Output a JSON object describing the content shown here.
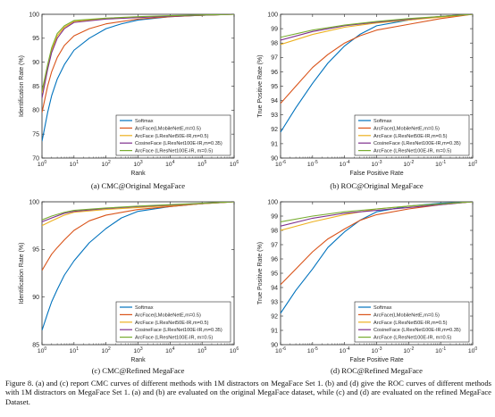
{
  "series_colors": [
    "#0072BD",
    "#D95319",
    "#EDB120",
    "#7E2F8E",
    "#77AC30"
  ],
  "caption": "Figure 8. (a) and (c) report CMC curves of different methods with 1M distractors on MegaFace Set 1. (b) and (d) give the ROC curves of different methods with 1M distractors on MegaFace Set 1. (a) and (b) are evaluated on the original MegaFace dataset, while (c) and (d) are evaluated on the refined MegaFace Dataset.",
  "chart_data": [
    {
      "type": "line",
      "panel_title": "(a)  CMC@Original MegaFace",
      "xlabel": "Rank",
      "ylabel": "Identification Rate (%)",
      "xscale": "log",
      "xlim": [
        1,
        1000000
      ],
      "ylim": [
        70,
        100
      ],
      "x_ticks": [
        1,
        10,
        100,
        1000,
        10000,
        100000,
        1000000
      ],
      "x_tick_labels": [
        [
          "10",
          "0"
        ],
        [
          "10",
          "1"
        ],
        [
          "10",
          "2"
        ],
        [
          "10",
          "3"
        ],
        [
          "10",
          "4"
        ],
        [
          "10",
          "5"
        ],
        [
          "10",
          "6"
        ]
      ],
      "y_ticks": [
        70,
        75,
        80,
        85,
        90,
        95,
        100
      ],
      "grid": false,
      "legend_position": "bottom-right",
      "series": [
        {
          "name": "Softmax",
          "x": [
            1,
            1.5,
            2,
            3,
            5,
            10,
            30,
            100,
            300,
            1000,
            10000,
            100000,
            1000000
          ],
          "y": [
            73.5,
            79.5,
            83,
            86.5,
            89.5,
            92.5,
            95,
            97,
            98,
            98.8,
            99.5,
            99.8,
            100
          ]
        },
        {
          "name": "ArcFace(LMobileNetE,m=0.5)",
          "x": [
            1,
            1.5,
            2,
            3,
            5,
            10,
            30,
            100,
            1000,
            10000,
            100000,
            1000000
          ],
          "y": [
            79.5,
            85,
            88,
            91,
            93.5,
            95.5,
            97,
            98,
            99,
            99.5,
            99.8,
            100
          ]
        },
        {
          "name": "ArcFace (LResNet50E-IR,m=0.5)",
          "x": [
            1,
            1.5,
            2,
            3,
            5,
            10,
            100,
            1000,
            10000,
            1000000
          ],
          "y": [
            83.5,
            89,
            92.5,
            95.5,
            97.3,
            98.5,
            99.1,
            99.4,
            99.6,
            100
          ]
        },
        {
          "name": "CosineFace (LResNet100E-IR,m=0.35)",
          "x": [
            1,
            1.5,
            2,
            3,
            5,
            10,
            100,
            1000,
            10000,
            1000000
          ],
          "y": [
            82.5,
            88.5,
            92,
            95,
            97,
            98.3,
            99,
            99.3,
            99.6,
            100
          ]
        },
        {
          "name": "ArcFace (LResNet100E-IR, m=0.5)",
          "x": [
            1,
            1.5,
            2,
            3,
            5,
            10,
            100,
            1000,
            10000,
            1000000
          ],
          "y": [
            84,
            89.5,
            93,
            96,
            97.6,
            98.7,
            99.2,
            99.5,
            99.7,
            100
          ]
        }
      ]
    },
    {
      "type": "line",
      "panel_title": "(b)  ROC@Original MegaFace",
      "xlabel": "False Positive Rate",
      "ylabel": "True Positive Rate (%)",
      "xscale": "log",
      "xlim": [
        1e-06,
        1
      ],
      "ylim": [
        90,
        100
      ],
      "x_ticks": [
        1e-06,
        1e-05,
        0.0001,
        0.001,
        0.01,
        0.1,
        1
      ],
      "x_tick_labels": [
        [
          "10",
          "-6"
        ],
        [
          "10",
          "-5"
        ],
        [
          "10",
          "-4"
        ],
        [
          "10",
          "-3"
        ],
        [
          "10",
          "-2"
        ],
        [
          "10",
          "-1"
        ],
        [
          "10",
          "0"
        ]
      ],
      "y_ticks": [
        90,
        91,
        92,
        93,
        94,
        95,
        96,
        97,
        98,
        99,
        100
      ],
      "grid": false,
      "legend_position": "bottom-right",
      "series": [
        {
          "name": "Softmax",
          "x": [
            1e-06,
            3e-06,
            1e-05,
            3e-05,
            0.0001,
            0.0003,
            0.001,
            0.01,
            0.1,
            1
          ],
          "y": [
            91.8,
            93.5,
            95.2,
            96.6,
            97.8,
            98.6,
            99.2,
            99.6,
            99.85,
            100
          ]
        },
        {
          "name": "ArcFace(LMobileNetE,m=0.5)",
          "x": [
            1e-06,
            3e-06,
            1e-05,
            3e-05,
            0.0001,
            0.0003,
            0.001,
            0.01,
            0.1,
            1
          ],
          "y": [
            93.8,
            95,
            96.3,
            97.2,
            98,
            98.5,
            98.9,
            99.3,
            99.7,
            100
          ]
        },
        {
          "name": "ArcFace (LResNet50E-IR,m=0.5)",
          "x": [
            1e-06,
            1e-05,
            0.0001,
            0.001,
            0.01,
            0.1,
            1
          ],
          "y": [
            97.9,
            98.6,
            99.1,
            99.4,
            99.6,
            99.8,
            100
          ]
        },
        {
          "name": "CosineFace (LResNet100E-IR,m=0.35)",
          "x": [
            1e-06,
            1e-05,
            0.0001,
            0.001,
            0.01,
            0.1,
            1
          ],
          "y": [
            98.2,
            98.8,
            99.2,
            99.45,
            99.65,
            99.85,
            100
          ]
        },
        {
          "name": "ArcFace (LResNet100E-IR, m=0.5)",
          "x": [
            1e-06,
            1e-05,
            0.0001,
            0.001,
            0.01,
            0.1,
            1
          ],
          "y": [
            98.4,
            98.9,
            99.25,
            99.5,
            99.7,
            99.85,
            100
          ]
        }
      ]
    },
    {
      "type": "line",
      "panel_title": "(c)  CMC@Refined MegaFace",
      "xlabel": "Rank",
      "ylabel": "Identification Rate (%)",
      "xscale": "log",
      "xlim": [
        1,
        1000000
      ],
      "ylim": [
        85,
        100
      ],
      "x_ticks": [
        1,
        10,
        100,
        1000,
        10000,
        100000,
        1000000
      ],
      "x_tick_labels": [
        [
          "10",
          "0"
        ],
        [
          "10",
          "1"
        ],
        [
          "10",
          "2"
        ],
        [
          "10",
          "3"
        ],
        [
          "10",
          "4"
        ],
        [
          "10",
          "5"
        ],
        [
          "10",
          "6"
        ]
      ],
      "y_ticks": [
        85,
        90,
        95,
        100
      ],
      "grid": false,
      "legend_position": "bottom-right",
      "series": [
        {
          "name": "Softmax",
          "x": [
            1,
            1.5,
            2,
            3,
            5,
            10,
            30,
            100,
            300,
            1000,
            10000,
            100000,
            1000000
          ],
          "y": [
            86.5,
            88.3,
            89.5,
            90.8,
            92.3,
            93.8,
            95.7,
            97.2,
            98.3,
            99,
            99.5,
            99.8,
            100
          ]
        },
        {
          "name": "ArcFace(LMobileNetE,m=0.5)",
          "x": [
            1,
            1.5,
            2,
            3,
            5,
            10,
            30,
            100,
            1000,
            10000,
            100000,
            1000000
          ],
          "y": [
            92.8,
            93.8,
            94.5,
            95.2,
            96,
            97,
            98,
            98.6,
            99.2,
            99.5,
            99.8,
            100
          ]
        },
        {
          "name": "ArcFace (LResNet50E-IR,m=0.5)",
          "x": [
            1,
            2,
            5,
            10,
            100,
            1000,
            10000,
            1000000
          ],
          "y": [
            97.5,
            98,
            98.6,
            98.9,
            99.2,
            99.4,
            99.6,
            100
          ]
        },
        {
          "name": "CosineFace (LResNet100E-IR,m=0.35)",
          "x": [
            1,
            2,
            5,
            10,
            100,
            1000,
            10000,
            1000000
          ],
          "y": [
            97.9,
            98.3,
            98.8,
            99,
            99.3,
            99.5,
            99.65,
            100
          ]
        },
        {
          "name": "ArcFace (LResNet100E-IR, m=0.5)",
          "x": [
            1,
            2,
            5,
            10,
            100,
            1000,
            10000,
            1000000
          ],
          "y": [
            98.1,
            98.5,
            98.9,
            99.1,
            99.35,
            99.55,
            99.7,
            100
          ]
        }
      ]
    },
    {
      "type": "line",
      "panel_title": "(d)  ROC@Refined MegaFace",
      "xlabel": "False Positive Rate",
      "ylabel": "True Positive Rate (%)",
      "xscale": "log",
      "xlim": [
        1e-06,
        1
      ],
      "ylim": [
        90,
        100
      ],
      "x_ticks": [
        1e-06,
        1e-05,
        0.0001,
        0.001,
        0.01,
        0.1,
        1
      ],
      "x_tick_labels": [
        [
          "10",
          "-6"
        ],
        [
          "10",
          "-5"
        ],
        [
          "10",
          "-4"
        ],
        [
          "10",
          "-3"
        ],
        [
          "10",
          "-2"
        ],
        [
          "10",
          "-1"
        ],
        [
          "10",
          "0"
        ]
      ],
      "y_ticks": [
        90,
        91,
        92,
        93,
        94,
        95,
        96,
        97,
        98,
        99,
        100
      ],
      "grid": false,
      "legend_position": "bottom-right",
      "series": [
        {
          "name": "Softmax",
          "x": [
            1e-06,
            3e-06,
            1e-05,
            3e-05,
            0.0001,
            0.0003,
            0.001,
            0.01,
            0.1,
            1
          ],
          "y": [
            92.2,
            93.8,
            95.3,
            96.8,
            97.9,
            98.7,
            99.3,
            99.7,
            99.9,
            100
          ]
        },
        {
          "name": "ArcFace(LMobileNetE,m=0.5)",
          "x": [
            1e-06,
            3e-06,
            1e-05,
            3e-05,
            0.0001,
            0.0003,
            0.001,
            0.01,
            0.1,
            1
          ],
          "y": [
            94.2,
            95.3,
            96.5,
            97.4,
            98.1,
            98.7,
            99.1,
            99.5,
            99.8,
            100
          ]
        },
        {
          "name": "ArcFace (LResNet50E-IR,m=0.5)",
          "x": [
            1e-06,
            1e-05,
            0.0001,
            0.001,
            0.01,
            0.1,
            1
          ],
          "y": [
            98,
            98.6,
            99.1,
            99.5,
            99.7,
            99.85,
            100
          ]
        },
        {
          "name": "CosineFace (LResNet100E-IR,m=0.35)",
          "x": [
            1e-06,
            1e-05,
            0.0001,
            0.001,
            0.01,
            0.1,
            1
          ],
          "y": [
            98.3,
            98.85,
            99.2,
            99.4,
            99.6,
            99.8,
            100
          ]
        },
        {
          "name": "ArcFace (LResNet100E-IR, m=0.5)",
          "x": [
            1e-06,
            1e-05,
            0.0001,
            0.001,
            0.01,
            0.1,
            1
          ],
          "y": [
            98.6,
            99,
            99.3,
            99.5,
            99.7,
            99.85,
            100
          ]
        }
      ]
    }
  ]
}
